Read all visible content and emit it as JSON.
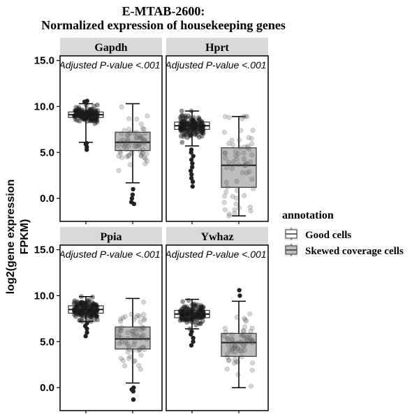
{
  "chart_data": {
    "type": "box",
    "title_line1": "E-MTAB-2600:",
    "title_line2": "Normalized expression of housekeeping genes",
    "ylabel_line1": "log2(gene expression",
    "ylabel_line2": "FPKM)",
    "ylim": [
      -2.5,
      15.5
    ],
    "yticks": [
      0,
      5,
      10,
      15
    ],
    "ytick_labels": [
      "0.0",
      "5.0",
      "10.0",
      "15.0"
    ],
    "legend": {
      "title": "annotation",
      "placement": "right",
      "entries": [
        {
          "label": "Good cells",
          "fill": "#ffffff"
        },
        {
          "label": "Skewed coverage cells",
          "fill": "#bdbdbd"
        }
      ]
    },
    "panels": [
      {
        "gene": "Gapdh",
        "annotation": "Adjusted P-value <.001",
        "groups": [
          {
            "group": "Good cells",
            "whisker_low": 6.1,
            "q1": 8.8,
            "median": 9.1,
            "q3": 9.4,
            "whisker_high": 10.3,
            "outliers": [
              5.3,
              5.6,
              5.9,
              6.0,
              10.4,
              10.5,
              10.6
            ]
          },
          {
            "group": "Skewed coverage cells",
            "whisker_low": 1.7,
            "q1": 5.2,
            "median": 6.1,
            "q3": 7.2,
            "whisker_high": 10.3,
            "outliers": [
              1.0,
              0.4,
              0.0,
              -0.4,
              -0.6
            ]
          }
        ]
      },
      {
        "gene": "Hprt",
        "annotation": "Adjusted P-value <.001",
        "groups": [
          {
            "group": "Good cells",
            "whisker_low": 5.7,
            "q1": 7.5,
            "median": 7.9,
            "q3": 8.3,
            "whisker_high": 9.5,
            "outliers": [
              1.3,
              1.8,
              2.2,
              2.6,
              3.0,
              3.4,
              3.8,
              4.2,
              4.6,
              5.0,
              5.3
            ]
          },
          {
            "group": "Skewed coverage cells",
            "whisker_low": -1.9,
            "q1": 1.2,
            "median": 3.6,
            "q3": 5.5,
            "whisker_high": 8.9,
            "outliers": []
          }
        ]
      },
      {
        "gene": "Ppia",
        "annotation": "Adjusted P-value <.001",
        "groups": [
          {
            "group": "Good cells",
            "whisker_low": 7.2,
            "q1": 8.1,
            "median": 8.5,
            "q3": 8.9,
            "whisker_high": 9.9,
            "outliers": [
              5.6,
              6.0,
              6.4,
              6.7,
              7.0
            ]
          },
          {
            "group": "Skewed coverage cells",
            "whisker_low": 0.5,
            "q1": 4.2,
            "median": 5.3,
            "q3": 6.6,
            "whisker_high": 9.7,
            "outliers": [
              0.0,
              -0.2,
              -0.4,
              -1.3
            ]
          }
        ]
      },
      {
        "gene": "Ywhaz",
        "annotation": "Adjusted P-value <.001",
        "groups": [
          {
            "group": "Good cells",
            "whisker_low": 6.4,
            "q1": 7.6,
            "median": 8.0,
            "q3": 8.4,
            "whisker_high": 9.6,
            "outliers": [
              4.6,
              5.0,
              5.4,
              5.8,
              6.1
            ]
          },
          {
            "group": "Skewed coverage cells",
            "whisker_low": 0.0,
            "q1": 3.4,
            "median": 4.9,
            "q3": 5.9,
            "whisker_high": 9.4,
            "outliers": [
              10.0,
              10.6
            ]
          }
        ]
      }
    ]
  }
}
